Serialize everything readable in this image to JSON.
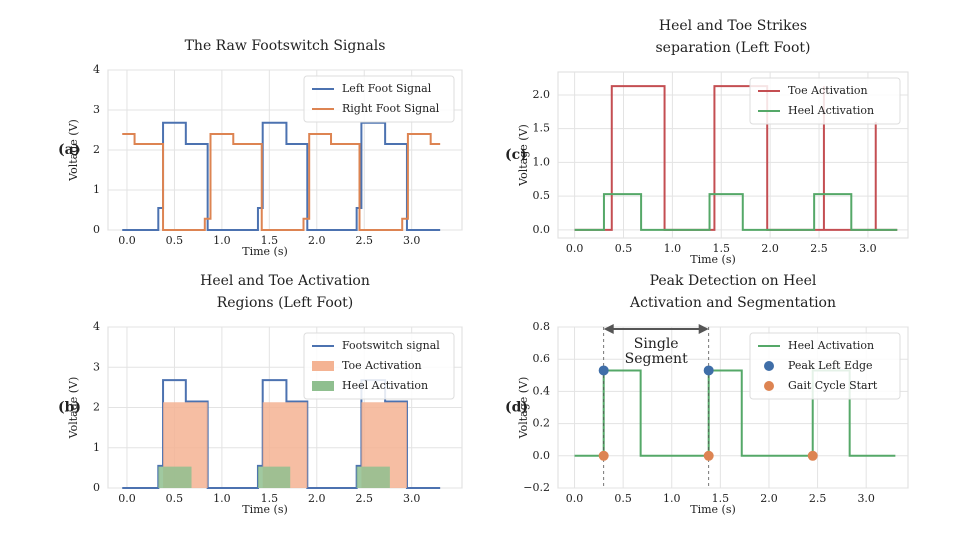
{
  "chart_data": [
    {
      "type": "line",
      "panel_label": "(a)",
      "title": [
        "The Raw Footswitch Signals"
      ],
      "xlabel": "Time (s)",
      "ylabel": "Voltage (V)",
      "xlim": [
        -0.2,
        3.53
      ],
      "ylim": [
        0,
        4
      ],
      "xticks": [
        {
          "value": 0,
          "label": "0.0"
        },
        {
          "value": 0.5,
          "label": "0.5"
        },
        {
          "value": 1,
          "label": "1.0"
        },
        {
          "value": 1.5,
          "label": "1.5"
        },
        {
          "value": 2,
          "label": "2.0"
        },
        {
          "value": 2.5,
          "label": "2.5"
        },
        {
          "value": 3,
          "label": "3.0"
        }
      ],
      "yticks": [
        0,
        1,
        2,
        3,
        4
      ],
      "grid": true,
      "legend": "upper right",
      "series": [
        {
          "name": "Left Foot Signal",
          "kind": "line",
          "color": "#4c72b0",
          "x": [
            -0.05,
            0.33,
            0.33,
            0.38,
            0.38,
            0.62,
            0.62,
            0.85,
            0.85,
            1.38,
            1.38,
            1.43,
            1.43,
            1.68,
            1.68,
            1.9,
            1.9,
            2.42,
            2.42,
            2.47,
            2.47,
            2.72,
            2.72,
            2.95,
            2.95,
            3.3
          ],
          "values": [
            0,
            0,
            0.55,
            0.55,
            2.68,
            2.68,
            2.15,
            2.15,
            0,
            0,
            0.55,
            0.55,
            2.68,
            2.68,
            2.15,
            2.15,
            0,
            0,
            0.55,
            0.55,
            2.68,
            2.68,
            2.15,
            2.15,
            0,
            0
          ]
        },
        {
          "name": "Right Foot Signal",
          "kind": "line",
          "color": "#dd8452",
          "x": [
            -0.05,
            0.08,
            0.08,
            0.38,
            0.38,
            0.82,
            0.82,
            0.88,
            0.88,
            1.12,
            1.12,
            1.42,
            1.42,
            1.86,
            1.86,
            1.92,
            1.92,
            2.15,
            2.15,
            2.45,
            2.45,
            2.9,
            2.9,
            2.96,
            2.96,
            3.2,
            3.2,
            3.3
          ],
          "values": [
            2.4,
            2.4,
            2.15,
            2.15,
            0,
            0,
            0.28,
            0.28,
            2.4,
            2.4,
            2.15,
            2.15,
            0,
            0,
            0.28,
            0.28,
            2.4,
            2.4,
            2.15,
            2.15,
            0,
            0,
            0.28,
            0.28,
            2.4,
            2.4,
            2.15,
            2.15
          ]
        }
      ]
    },
    {
      "type": "line",
      "panel_label": "(b)",
      "title": [
        "Heel and Toe Activation",
        "Regions (Left Foot)"
      ],
      "xlabel": "Time (s)",
      "ylabel": "Voltage (V)",
      "xlim": [
        -0.2,
        3.53
      ],
      "ylim": [
        0,
        4
      ],
      "xticks": [
        {
          "value": 0,
          "label": "0.0"
        },
        {
          "value": 0.5,
          "label": "0.5"
        },
        {
          "value": 1,
          "label": "1.0"
        },
        {
          "value": 1.5,
          "label": "1.5"
        },
        {
          "value": 2,
          "label": "2.0"
        },
        {
          "value": 2.5,
          "label": "2.5"
        },
        {
          "value": 3,
          "label": "3.0"
        }
      ],
      "yticks": [
        0,
        1,
        2,
        3,
        4
      ],
      "grid": true,
      "legend": "upper right",
      "series": [
        {
          "name": "Footswitch signal",
          "kind": "line",
          "color": "#4c72b0",
          "x": [
            -0.05,
            0.33,
            0.33,
            0.38,
            0.38,
            0.62,
            0.62,
            0.85,
            0.85,
            1.38,
            1.38,
            1.43,
            1.43,
            1.68,
            1.68,
            1.9,
            1.9,
            2.42,
            2.42,
            2.47,
            2.47,
            2.72,
            2.72,
            2.95,
            2.95,
            3.3
          ],
          "values": [
            0,
            0,
            0.55,
            0.55,
            2.68,
            2.68,
            2.15,
            2.15,
            0,
            0,
            0.55,
            0.55,
            2.68,
            2.68,
            2.15,
            2.15,
            0,
            0,
            0.55,
            0.55,
            2.68,
            2.68,
            2.15,
            2.15,
            0,
            0
          ]
        },
        {
          "name": "Toe Activation",
          "kind": "area",
          "color": "#f4b393",
          "x": [
            0.38,
            0.38,
            0.85,
            0.85,
            1.43,
            1.43,
            1.9,
            1.9,
            2.47,
            2.47,
            2.95,
            2.95
          ],
          "values": [
            0,
            2.13,
            2.13,
            0,
            0,
            2.13,
            2.13,
            0,
            0,
            2.13,
            2.13,
            0
          ]
        },
        {
          "name": "Heel Activation",
          "kind": "area",
          "color": "#8fbf8f",
          "x": [
            0.33,
            0.33,
            0.68,
            0.68,
            1.38,
            1.38,
            1.72,
            1.72,
            2.42,
            2.42,
            2.77,
            2.77
          ],
          "values": [
            0,
            0.53,
            0.53,
            0,
            0,
            0.53,
            0.53,
            0,
            0,
            0.53,
            0.53,
            0
          ]
        }
      ]
    },
    {
      "type": "line",
      "panel_label": "(c)",
      "title": [
        "Heel and Toe Strikes",
        "separation (Left Foot)"
      ],
      "xlabel": "Time (s)",
      "ylabel": "Voltage (V)",
      "xlim": [
        -0.17,
        3.41
      ],
      "ylim": [
        -0.12,
        2.34
      ],
      "xticks": [
        {
          "value": 0,
          "label": "0.0"
        },
        {
          "value": 0.5,
          "label": "0.5"
        },
        {
          "value": 1,
          "label": "1.0"
        },
        {
          "value": 1.5,
          "label": "1.5"
        },
        {
          "value": 2,
          "label": "2.0"
        },
        {
          "value": 2.5,
          "label": "2.5"
        },
        {
          "value": 3,
          "label": "3.0"
        }
      ],
      "yticks": [
        {
          "value": 0,
          "label": "0.0"
        },
        {
          "value": 0.5,
          "label": "0.5"
        },
        {
          "value": 1,
          "label": "1.0"
        },
        {
          "value": 1.5,
          "label": "1.5"
        },
        {
          "value": 2,
          "label": "2.0"
        }
      ],
      "grid": true,
      "legend": "upper right",
      "series": [
        {
          "name": "Toe Activation",
          "kind": "line",
          "color": "#c44e52",
          "x": [
            0,
            0.38,
            0.38,
            0.92,
            0.92,
            1.43,
            1.43,
            1.97,
            1.97,
            2.55,
            2.55,
            2.55,
            3.08,
            3.08,
            3.08,
            3.3
          ],
          "values": [
            0,
            0,
            2.13,
            2.13,
            0,
            0,
            2.13,
            2.13,
            0,
            0,
            2.13,
            0,
            0,
            1.6,
            0,
            0
          ]
        },
        {
          "name": "Heel Activation",
          "kind": "line",
          "color": "#55a868",
          "x": [
            0,
            0.3,
            0.3,
            0.68,
            0.68,
            1.38,
            1.38,
            1.72,
            1.72,
            2.45,
            2.45,
            2.83,
            2.83,
            3.3
          ],
          "values": [
            0,
            0,
            0.53,
            0.53,
            0,
            0,
            0.53,
            0.53,
            0,
            0,
            0.53,
            0.53,
            0,
            0
          ]
        }
      ]
    },
    {
      "type": "line",
      "panel_label": "(d)",
      "title": [
        "Peak Detection on Heel",
        "Activation and Segmentation"
      ],
      "xlabel": "Time (s)",
      "ylabel": "Voltage (V)",
      "xlim": [
        -0.17,
        3.43
      ],
      "ylim": [
        -0.2,
        0.8
      ],
      "xticks": [
        {
          "value": 0,
          "label": "0.0"
        },
        {
          "value": 0.5,
          "label": "0.5"
        },
        {
          "value": 1,
          "label": "1.0"
        },
        {
          "value": 1.5,
          "label": "1.5"
        },
        {
          "value": 2,
          "label": "2.0"
        },
        {
          "value": 2.5,
          "label": "2.5"
        },
        {
          "value": 3,
          "label": "3.0"
        }
      ],
      "yticks": [
        {
          "value": -0.2,
          "label": "−0.2"
        },
        {
          "value": 0,
          "label": "0.0"
        },
        {
          "value": 0.2,
          "label": "0.2"
        },
        {
          "value": 0.4,
          "label": "0.4"
        },
        {
          "value": 0.6,
          "label": "0.6"
        },
        {
          "value": 0.8,
          "label": "0.8"
        }
      ],
      "grid": true,
      "legend": "upper right",
      "annotation": [
        "Single",
        "Segment"
      ],
      "series": [
        {
          "name": "Heel Activation",
          "kind": "line",
          "color": "#55a868",
          "x": [
            0,
            0.3,
            0.3,
            0.68,
            0.68,
            1.38,
            1.38,
            1.72,
            1.72,
            2.45,
            2.45,
            2.83,
            2.83,
            3.3
          ],
          "values": [
            0,
            0,
            0.53,
            0.53,
            0,
            0,
            0.53,
            0.53,
            0,
            0,
            0.53,
            0.53,
            0,
            0
          ]
        },
        {
          "name": "Peak Left Edge",
          "kind": "scatter",
          "color": "#3f6ea8",
          "x": [
            0.3,
            1.38
          ],
          "values": [
            0.53,
            0.53
          ]
        },
        {
          "name": "Gait Cycle Start",
          "kind": "scatter",
          "color": "#dd8452",
          "x": [
            0.3,
            1.38,
            2.45
          ],
          "values": [
            0,
            0,
            0
          ]
        }
      ]
    }
  ]
}
